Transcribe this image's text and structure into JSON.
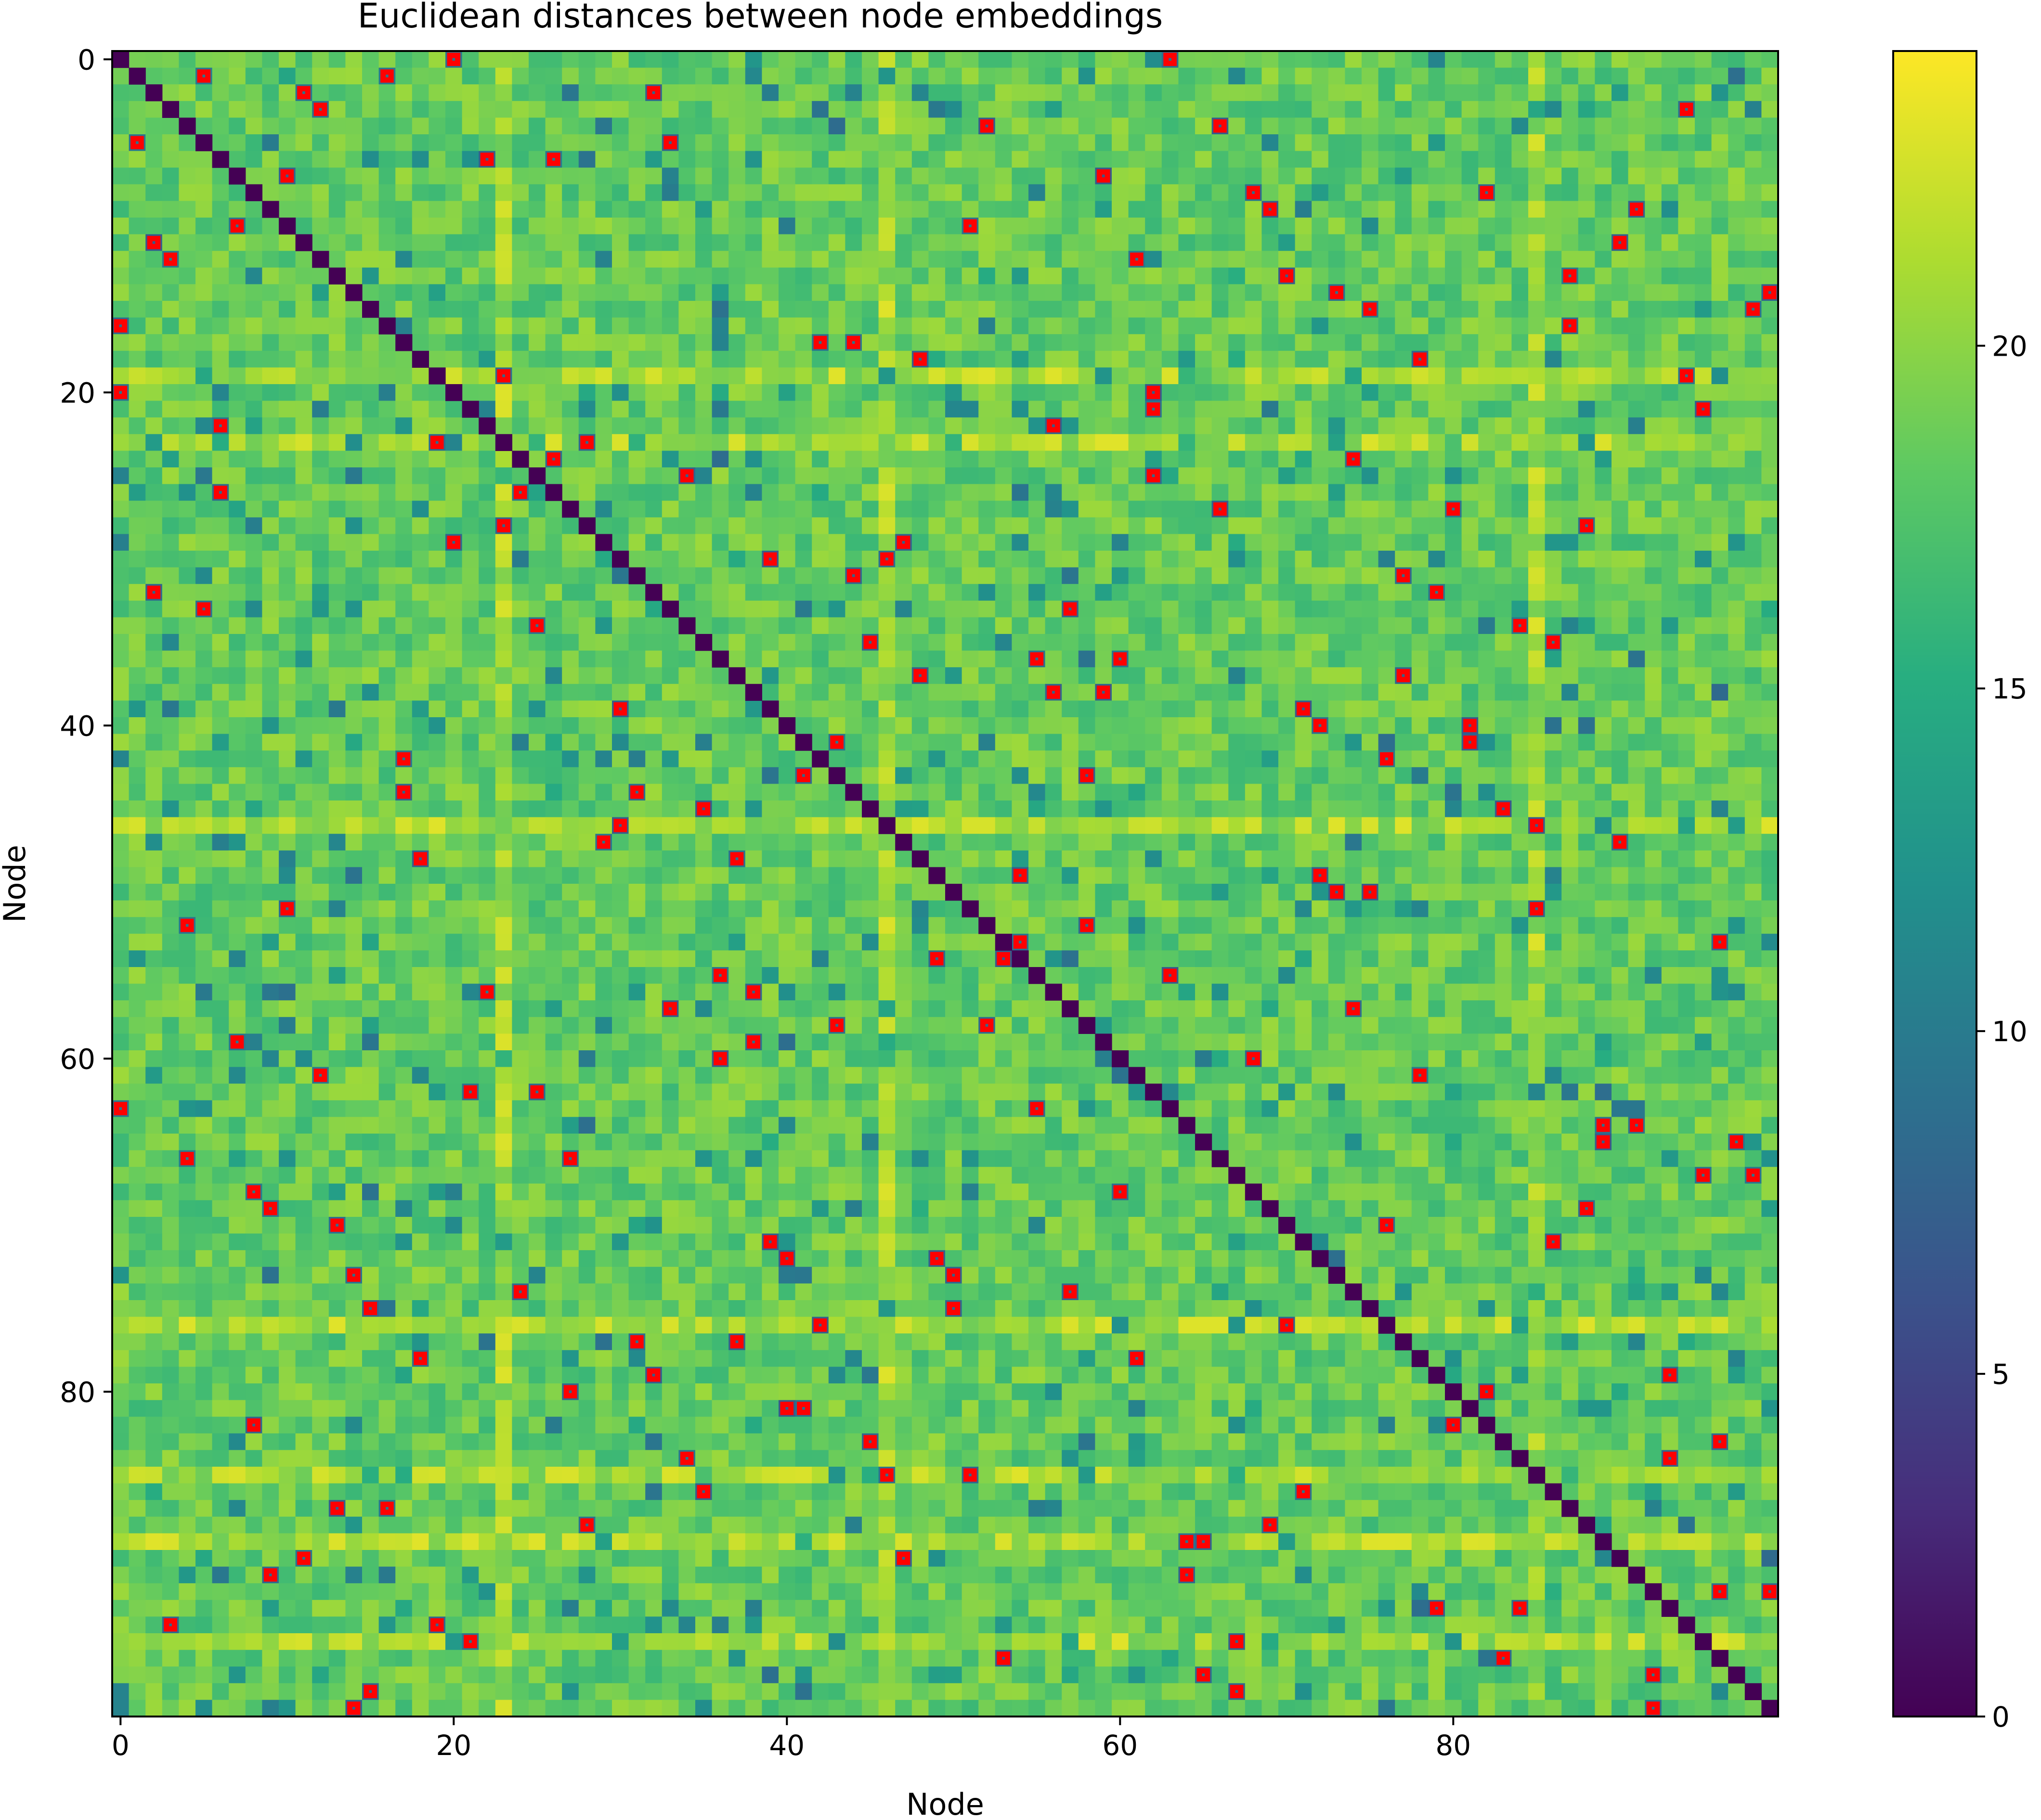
{
  "chart_data": {
    "type": "heatmap",
    "title": "Euclidean distances between node embeddings",
    "xlabel": "Node",
    "ylabel": "Node",
    "n_nodes": 100,
    "x_ticks": [
      0,
      20,
      40,
      60,
      80
    ],
    "y_ticks": [
      0,
      20,
      40,
      60,
      80
    ],
    "colorbar_ticks": [
      0,
      5,
      10,
      15,
      20
    ],
    "value_range": [
      0,
      24.3
    ],
    "colormap": "viridis",
    "diagonal_value": 0,
    "background_distance_mean": 18.5,
    "highlight_color": "#ff0000",
    "bright_rows": [
      19,
      23,
      46,
      76,
      85,
      89,
      95
    ],
    "bright_cols": [
      23,
      46,
      85
    ],
    "highlighted_cells": [
      [
        0,
        20
      ],
      [
        0,
        63
      ],
      [
        1,
        5
      ],
      [
        1,
        16
      ],
      [
        2,
        11
      ],
      [
        2,
        32
      ],
      [
        3,
        12
      ],
      [
        3,
        94
      ],
      [
        4,
        52
      ],
      [
        4,
        66
      ],
      [
        5,
        1
      ],
      [
        5,
        33
      ],
      [
        6,
        22
      ],
      [
        6,
        26
      ],
      [
        7,
        10
      ],
      [
        7,
        59
      ],
      [
        8,
        68
      ],
      [
        8,
        82
      ],
      [
        9,
        69
      ],
      [
        9,
        91
      ],
      [
        10,
        7
      ],
      [
        10,
        51
      ],
      [
        11,
        2
      ],
      [
        11,
        90
      ],
      [
        12,
        3
      ],
      [
        12,
        61
      ],
      [
        13,
        70
      ],
      [
        13,
        87
      ],
      [
        14,
        73
      ],
      [
        14,
        99
      ],
      [
        15,
        75
      ],
      [
        15,
        98
      ],
      [
        16,
        0
      ],
      [
        16,
        87
      ],
      [
        17,
        42
      ],
      [
        17,
        44
      ],
      [
        18,
        48
      ],
      [
        18,
        78
      ],
      [
        19,
        23
      ],
      [
        19,
        94
      ],
      [
        20,
        0
      ],
      [
        20,
        62
      ],
      [
        21,
        62
      ],
      [
        21,
        95
      ],
      [
        22,
        6
      ],
      [
        22,
        56
      ],
      [
        23,
        19
      ],
      [
        23,
        28
      ],
      [
        24,
        26
      ],
      [
        24,
        74
      ],
      [
        25,
        34
      ],
      [
        25,
        62
      ],
      [
        26,
        6
      ],
      [
        26,
        24
      ],
      [
        27,
        66
      ],
      [
        27,
        80
      ],
      [
        28,
        23
      ],
      [
        28,
        88
      ],
      [
        29,
        20
      ],
      [
        29,
        47
      ],
      [
        30,
        39
      ],
      [
        30,
        46
      ],
      [
        31,
        44
      ],
      [
        31,
        77
      ],
      [
        32,
        2
      ],
      [
        32,
        79
      ],
      [
        33,
        5
      ],
      [
        33,
        57
      ],
      [
        34,
        25
      ],
      [
        34,
        84
      ],
      [
        35,
        45
      ],
      [
        35,
        86
      ],
      [
        36,
        55
      ],
      [
        36,
        60
      ],
      [
        37,
        48
      ],
      [
        37,
        77
      ],
      [
        38,
        56
      ],
      [
        38,
        59
      ],
      [
        39,
        30
      ],
      [
        39,
        71
      ],
      [
        40,
        72
      ],
      [
        40,
        81
      ],
      [
        41,
        43
      ],
      [
        41,
        81
      ],
      [
        42,
        17
      ],
      [
        42,
        76
      ],
      [
        43,
        41
      ],
      [
        43,
        58
      ],
      [
        44,
        17
      ],
      [
        44,
        31
      ],
      [
        45,
        35
      ],
      [
        45,
        83
      ],
      [
        46,
        30
      ],
      [
        46,
        85
      ],
      [
        47,
        29
      ],
      [
        47,
        90
      ],
      [
        48,
        18
      ],
      [
        48,
        37
      ],
      [
        49,
        54
      ],
      [
        49,
        72
      ],
      [
        50,
        73
      ],
      [
        50,
        75
      ],
      [
        51,
        10
      ],
      [
        51,
        85
      ],
      [
        52,
        4
      ],
      [
        52,
        58
      ],
      [
        53,
        96
      ],
      [
        53,
        54
      ],
      [
        54,
        49
      ],
      [
        54,
        53
      ],
      [
        55,
        36
      ],
      [
        55,
        63
      ],
      [
        56,
        22
      ],
      [
        56,
        38
      ],
      [
        57,
        33
      ],
      [
        57,
        74
      ],
      [
        58,
        43
      ],
      [
        58,
        52
      ],
      [
        59,
        7
      ],
      [
        59,
        38
      ],
      [
        60,
        36
      ],
      [
        60,
        68
      ],
      [
        61,
        12
      ],
      [
        61,
        78
      ],
      [
        62,
        21
      ],
      [
        62,
        25
      ],
      [
        63,
        0
      ],
      [
        63,
        55
      ],
      [
        64,
        89
      ],
      [
        64,
        91
      ],
      [
        65,
        89
      ],
      [
        65,
        97
      ],
      [
        66,
        4
      ],
      [
        66,
        27
      ],
      [
        67,
        95
      ],
      [
        67,
        98
      ],
      [
        68,
        8
      ],
      [
        68,
        60
      ],
      [
        69,
        9
      ],
      [
        69,
        88
      ],
      [
        70,
        13
      ],
      [
        70,
        76
      ],
      [
        71,
        39
      ],
      [
        71,
        86
      ],
      [
        72,
        40
      ],
      [
        72,
        49
      ],
      [
        73,
        14
      ],
      [
        73,
        50
      ],
      [
        74,
        24
      ],
      [
        74,
        57
      ],
      [
        75,
        15
      ],
      [
        75,
        50
      ],
      [
        76,
        42
      ],
      [
        76,
        70
      ],
      [
        77,
        31
      ],
      [
        77,
        37
      ],
      [
        78,
        18
      ],
      [
        78,
        61
      ],
      [
        79,
        32
      ],
      [
        79,
        93
      ],
      [
        80,
        27
      ],
      [
        80,
        82
      ],
      [
        81,
        40
      ],
      [
        81,
        41
      ],
      [
        82,
        8
      ],
      [
        82,
        80
      ],
      [
        83,
        45
      ],
      [
        83,
        96
      ],
      [
        84,
        34
      ],
      [
        84,
        93
      ],
      [
        85,
        46
      ],
      [
        85,
        51
      ],
      [
        86,
        35
      ],
      [
        86,
        71
      ],
      [
        87,
        13
      ],
      [
        87,
        16
      ],
      [
        88,
        28
      ],
      [
        88,
        69
      ],
      [
        89,
        64
      ],
      [
        89,
        65
      ],
      [
        90,
        11
      ],
      [
        90,
        47
      ],
      [
        91,
        9
      ],
      [
        91,
        64
      ],
      [
        92,
        96
      ],
      [
        92,
        99
      ],
      [
        93,
        79
      ],
      [
        93,
        84
      ],
      [
        94,
        3
      ],
      [
        94,
        19
      ],
      [
        95,
        21
      ],
      [
        95,
        67
      ],
      [
        96,
        53
      ],
      [
        96,
        83
      ],
      [
        97,
        65
      ],
      [
        97,
        92
      ],
      [
        98,
        15
      ],
      [
        98,
        67
      ],
      [
        99,
        14
      ],
      [
        99,
        92
      ]
    ]
  }
}
